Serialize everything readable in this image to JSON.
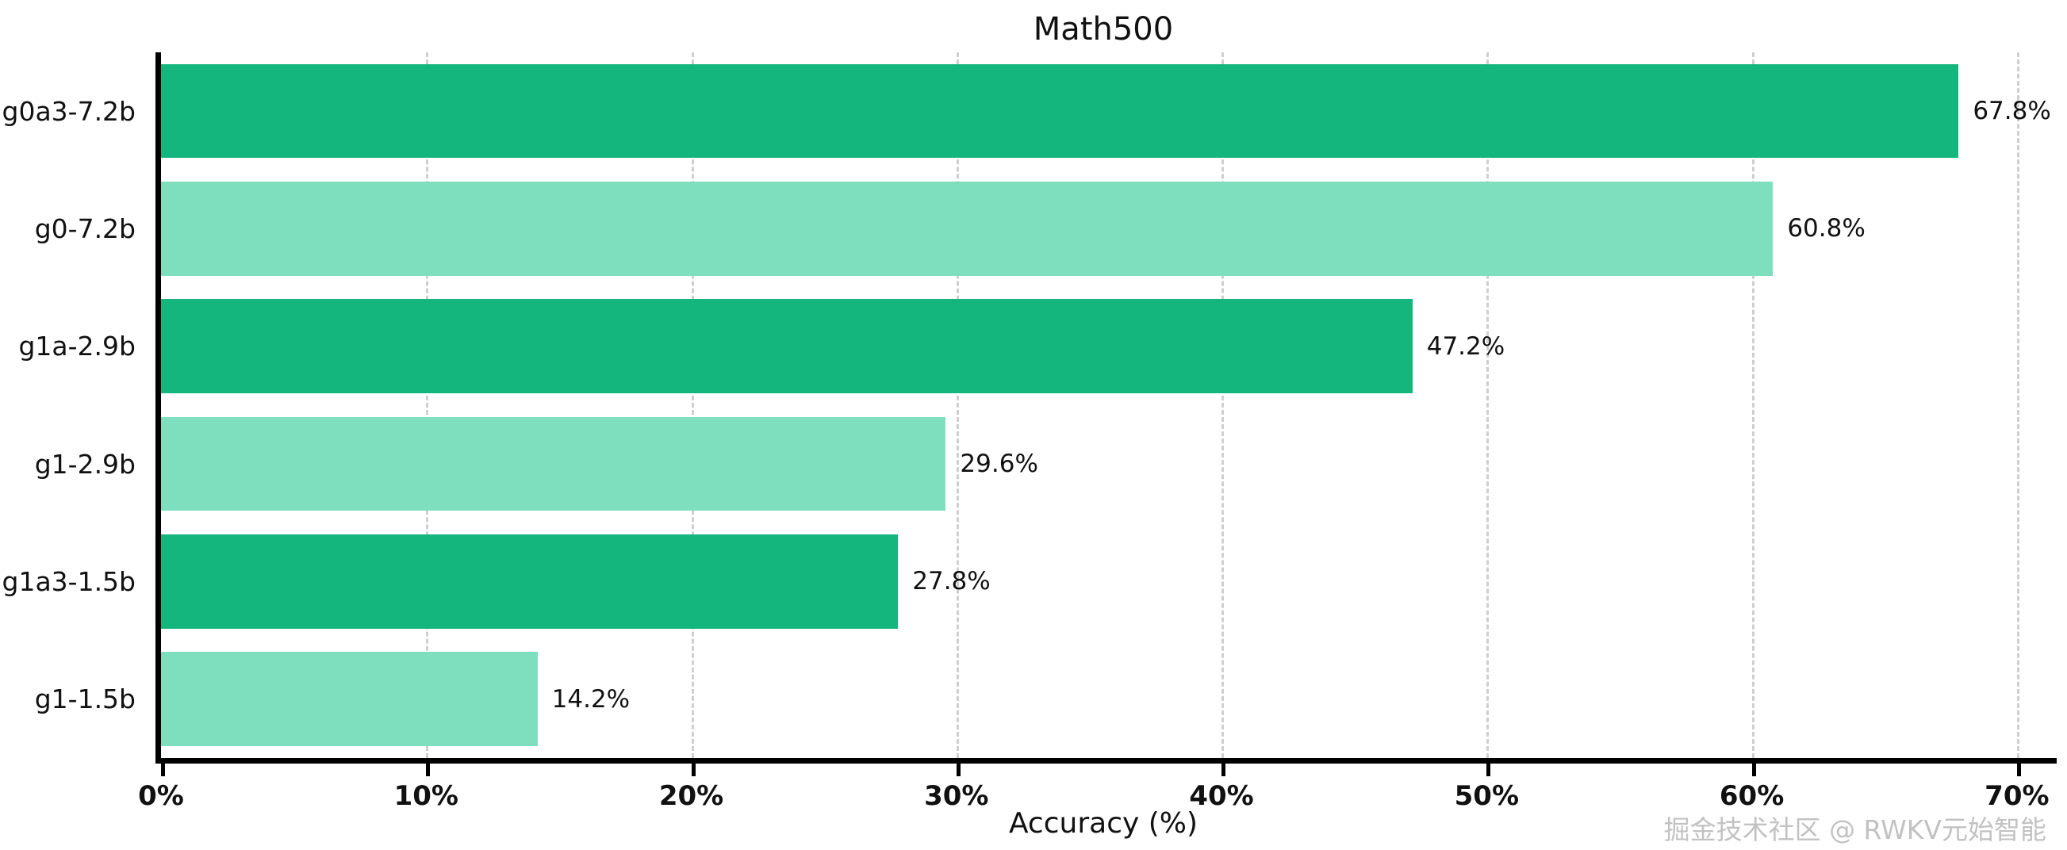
{
  "chart_data": {
    "type": "bar",
    "orientation": "horizontal",
    "title": "Math500",
    "xlabel": "Accuracy (%)",
    "ylabel": "",
    "categories": [
      "g0a3-7.2b",
      "g0-7.2b",
      "g1a-2.9b",
      "g1-2.9b",
      "g1a3-1.5b",
      "g1-1.5b"
    ],
    "values": [
      67.8,
      60.8,
      47.2,
      29.6,
      27.8,
      14.2
    ],
    "value_labels": [
      "67.8%",
      "60.8%",
      "47.2%",
      "29.6%",
      "27.8%",
      "14.2%"
    ],
    "xlim": [
      0,
      71.5
    ],
    "xtick_values": [
      0,
      10,
      20,
      30,
      40,
      50,
      60,
      70
    ],
    "xtick_labels": [
      "0%",
      "10%",
      "20%",
      "30%",
      "40%",
      "50%",
      "60%",
      "70%"
    ],
    "grid": "vertical-dashed",
    "legend": "none",
    "bar_colors": [
      "#14b67e",
      "#7ddfbd",
      "#14b67e",
      "#7ddfbd",
      "#14b67e",
      "#7ddfbd"
    ],
    "gridline_color": "#cfcfcf"
  },
  "watermark": {
    "text": "掘金技术社区 @ RWKV元始智能",
    "color": "#c2c2c2"
  }
}
